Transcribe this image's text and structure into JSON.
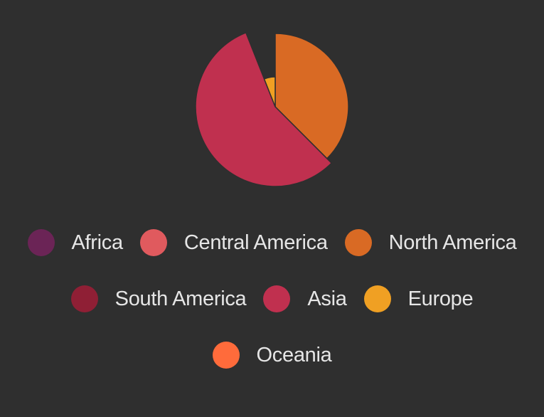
{
  "chart_data": {
    "type": "pie",
    "variant": "variable-radius",
    "title": "",
    "start_angle_deg": 0,
    "slices": [
      {
        "label": "Africa",
        "value": 0,
        "radius_value": 0,
        "color": "#6b2456"
      },
      {
        "label": "Central America",
        "value": 0,
        "radius_value": 0,
        "color": "#e05a5e"
      },
      {
        "label": "North America",
        "value": 37.5,
        "radius_value": 103,
        "color": "#d96a24"
      },
      {
        "label": "South America",
        "value": 0,
        "radius_value": 0,
        "color": "#8f1f35"
      },
      {
        "label": "Asia",
        "value": 56.5,
        "radius_value": 112,
        "color": "#c0304f"
      },
      {
        "label": "Europe",
        "value": 6.0,
        "radius_value": 42,
        "color": "#f0a023"
      },
      {
        "label": "Oceania",
        "value": 0,
        "radius_value": 0,
        "color": "#ff6b3b"
      }
    ],
    "legend_position": "bottom"
  }
}
